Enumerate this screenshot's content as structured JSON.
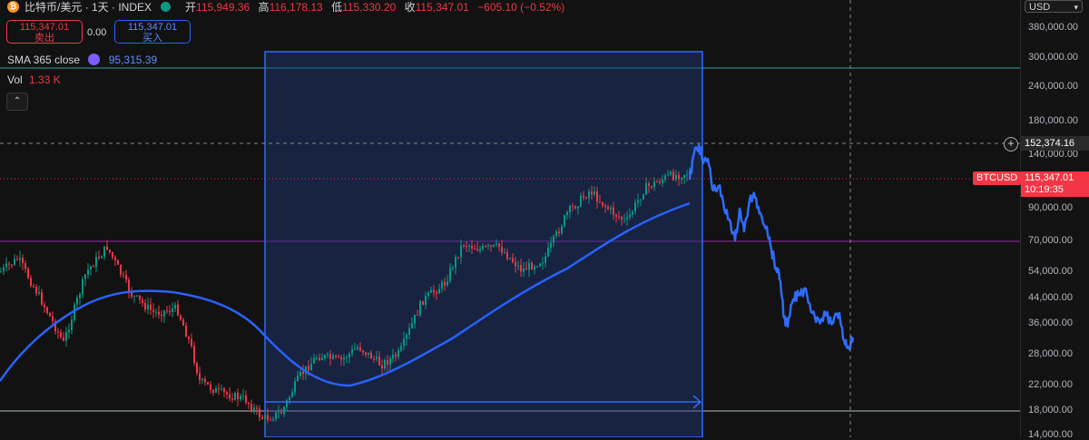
{
  "header": {
    "symbol_title": "比特币/美元 · 1天 · INDEX",
    "logo": "bitcoin-icon",
    "ohlc": [
      {
        "key": "开",
        "value": "115,949.36"
      },
      {
        "key": "高",
        "value": "116,178.13"
      },
      {
        "key": "低",
        "value": "115,330.20"
      },
      {
        "key": "收",
        "value": "115,347.01"
      }
    ],
    "change": "−605.10 (−0.52%)"
  },
  "trade": {
    "sell_price": "115,347.01",
    "sell_label": "卖出",
    "spread": "0.00",
    "buy_price": "115,347.01",
    "buy_label": "买入"
  },
  "indicators": {
    "sma_label": "SMA 365 close",
    "sma_value": "95,315.39",
    "vol_label": "Vol",
    "vol_value": "1.33 K"
  },
  "price_axis": {
    "currency": "USD",
    "ticks": [
      "380,000.00",
      "300,000.00",
      "240,000.00",
      "180,000.00",
      "140,000.00",
      "90,000.00",
      "70,000.00",
      "54,000.00",
      "44,000.00",
      "36,000.00",
      "28,000.00",
      "22,000.00",
      "18,000.00",
      "14,000.00"
    ],
    "crosshair_price": "152,374.16",
    "last_symbol": "BTCUSD",
    "last_price": "115,347.01",
    "countdown": "10:19:35"
  },
  "colors": {
    "background": "#121212",
    "up": "#089981",
    "down": "#f23645",
    "sma": "#2962ff",
    "projection": "#2f6bff",
    "teal_line": "#26a69a",
    "purple_line": "#9c27b0",
    "base_line": "#b0bec5"
  }
}
